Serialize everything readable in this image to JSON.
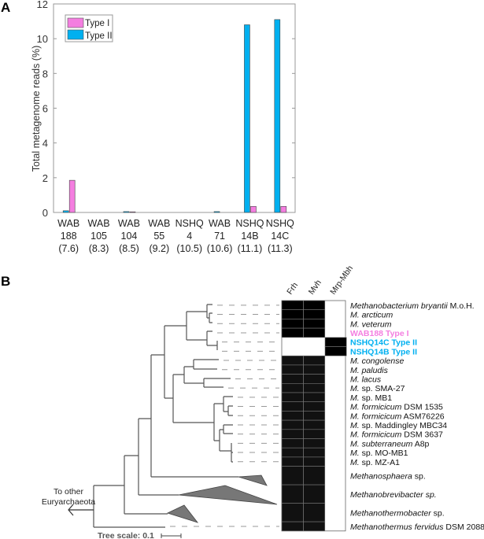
{
  "panel_a_label": "A",
  "panel_b_label": "B",
  "chart_data": {
    "type": "bar",
    "title": "",
    "xlabel": "",
    "ylabel": "Total metagenome reads (%)",
    "ylim": [
      0,
      12
    ],
    "yticks": [
      "0",
      "2",
      "4",
      "6",
      "8",
      "10",
      "12"
    ],
    "grid": false,
    "legend_placement": "top-left",
    "categories": [
      [
        "WAB",
        "188",
        "(7.6)"
      ],
      [
        "WAB",
        "105",
        "(8.3)"
      ],
      [
        "WAB",
        "104",
        "(8.5)"
      ],
      [
        "WAB",
        "55",
        "(9.2)"
      ],
      [
        "NSHQ",
        "4",
        "(10.5)"
      ],
      [
        "WAB",
        "71",
        "(10.6)"
      ],
      [
        "NSHQ",
        "14B",
        "(11.1)"
      ],
      [
        "NSHQ",
        "14C",
        "(11.3)"
      ]
    ],
    "series": [
      {
        "name": "Type II",
        "color": "#00b0f0",
        "values": [
          0.1,
          0,
          0.05,
          0,
          0,
          0.05,
          10.8,
          11.1
        ]
      },
      {
        "name": "Type I",
        "color": "#f47ee0",
        "values": [
          1.85,
          0,
          0.02,
          0,
          0,
          0,
          0.35,
          0.35
        ]
      }
    ],
    "legend": [
      "Type I",
      "Type II"
    ]
  },
  "tree": {
    "outgroup_label": [
      "To other",
      "Euryarchaeota"
    ],
    "scale_label": "Tree scale: 0.1",
    "columns": [
      "Frh",
      "Mvh",
      "Mrp-Mbh"
    ],
    "rows": [
      {
        "italic": "Methanobacterium bryantii",
        "rest": " M.o.H.",
        "presence": [
          1,
          1,
          0
        ]
      },
      {
        "italic": "M. arcticum",
        "rest": "",
        "presence": [
          1,
          1,
          0
        ]
      },
      {
        "italic": "M. veterum",
        "rest": "",
        "presence": [
          1,
          1,
          0
        ]
      },
      {
        "italic": "",
        "rest": "WAB188 Type I",
        "bold": true,
        "color": "#f47ee0",
        "presence": [
          1,
          1,
          0
        ]
      },
      {
        "italic": "",
        "rest": "NSHQ14C Type II",
        "bold": true,
        "color": "#00b0f0",
        "presence": [
          0,
          0,
          1
        ]
      },
      {
        "italic": "",
        "rest": "NSHQ14B Type II",
        "bold": true,
        "color": "#00b0f0",
        "presence": [
          0,
          0,
          1
        ]
      },
      {
        "italic": "M. congolense",
        "rest": "",
        "presence": [
          1,
          1,
          0
        ]
      },
      {
        "italic": "M. paludis",
        "rest": "",
        "presence": [
          1,
          1,
          0
        ]
      },
      {
        "italic": "M. lacus",
        "rest": "",
        "presence": [
          1,
          1,
          0
        ]
      },
      {
        "italic": "M.",
        "rest": " sp. SMA-27",
        "presence": [
          1,
          1,
          0
        ]
      },
      {
        "italic": "M.",
        "rest": " sp. MB1",
        "presence": [
          1,
          1,
          0
        ]
      },
      {
        "italic": "M. formicicum",
        "rest": " DSM 1535",
        "presence": [
          1,
          1,
          0
        ]
      },
      {
        "italic": "M. formicicum",
        "rest": " ASM76226",
        "presence": [
          1,
          1,
          0
        ]
      },
      {
        "italic": "M.",
        "rest": " sp. Maddingley MBC34",
        "presence": [
          1,
          1,
          0
        ]
      },
      {
        "italic": "M. formicicum",
        "rest": " DSM 3637",
        "presence": [
          1,
          1,
          0
        ]
      },
      {
        "italic": "M. subterraneum",
        "rest": " A8p",
        "presence": [
          1,
          1,
          0
        ]
      },
      {
        "italic": "M.",
        "rest": " sp. MO-MB1",
        "presence": [
          1,
          1,
          0
        ]
      },
      {
        "italic": "M.",
        "rest": " sp. MZ-A1",
        "presence": [
          1,
          1,
          0
        ]
      },
      {
        "italic": "Methanosphaera",
        "rest": " sp.",
        "presence": [
          1,
          1,
          0
        ],
        "tall": true
      },
      {
        "italic": "Methanobrevibacter sp.",
        "rest": "",
        "presence": [
          1,
          1,
          0
        ],
        "tall": true
      },
      {
        "italic": "Methanothermobacter",
        "rest": " sp.",
        "presence": [
          1,
          1,
          0
        ],
        "tall": true
      },
      {
        "italic": "Methanothermus fervidus",
        "rest": " DSM 2088",
        "presence": [
          1,
          1,
          0
        ]
      }
    ]
  }
}
